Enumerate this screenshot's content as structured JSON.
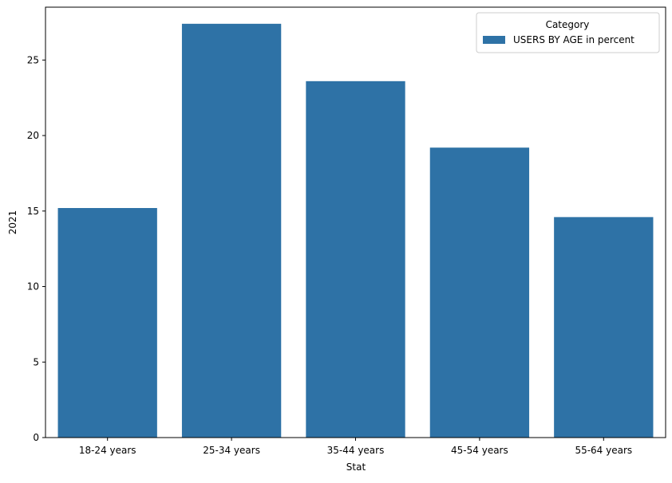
{
  "chart_data": {
    "type": "bar",
    "title": "",
    "xlabel": "Stat",
    "ylabel": "2021",
    "categories": [
      "18-24 years",
      "25-34 years",
      "35-44 years",
      "45-54 years",
      "55-64 years"
    ],
    "series": [
      {
        "name": "USERS BY AGE in percent",
        "values": [
          15.2,
          27.4,
          23.6,
          19.2,
          14.6
        ],
        "color": "#2e72a6"
      }
    ],
    "ylim": [
      0,
      28.5
    ],
    "yticks": [
      0,
      5,
      10,
      15,
      20,
      25
    ],
    "grid": false,
    "legend": {
      "title": "Category",
      "position": "top-right"
    }
  }
}
